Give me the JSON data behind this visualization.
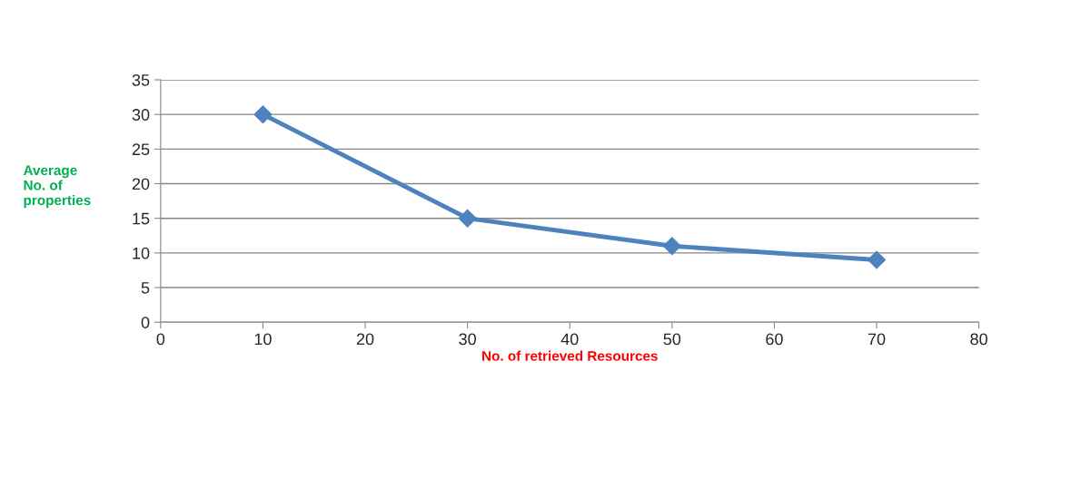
{
  "chart_data": {
    "type": "line",
    "xlabel": "No. of retrieved Resources",
    "ylabel": "Average\nNo. of\nproperties",
    "x": [
      10,
      30,
      50,
      70
    ],
    "series": [
      {
        "color": "#4f81bd",
        "values": [
          30,
          15,
          11,
          9
        ]
      }
    ],
    "xlim": [
      0,
      80
    ],
    "xticks": [
      0,
      10,
      20,
      30,
      40,
      50,
      60,
      70,
      80
    ],
    "ylim": [
      0,
      35
    ],
    "yticks": [
      0,
      5,
      10,
      15,
      20,
      25,
      30,
      35
    ],
    "grid": "y",
    "legend": false,
    "marker": "diamond",
    "line_style": "solid"
  }
}
